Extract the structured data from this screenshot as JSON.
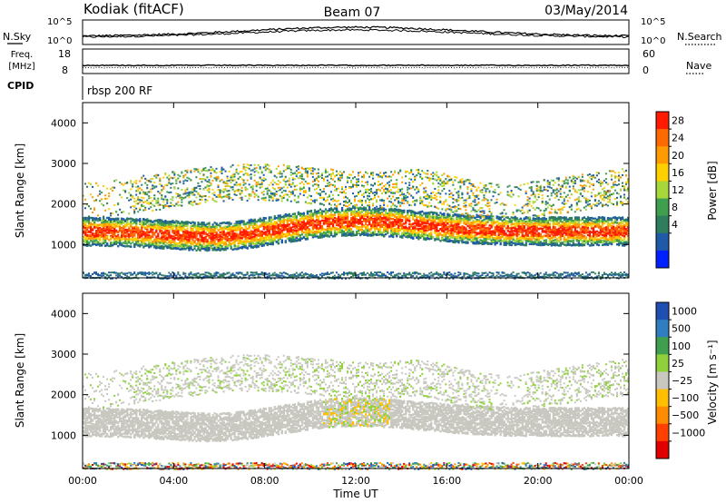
{
  "header": {
    "station": "Kodiak (fitACF)",
    "beam": "Beam 07",
    "date": "03/May/2014"
  },
  "sky_panel": {
    "left_label": "N.Sky",
    "right_label": "N.Search",
    "left_ticks": [
      "10^5",
      "10^0"
    ],
    "right_ticks": [
      "10^5",
      "10^0"
    ]
  },
  "freq_panel": {
    "label_line1": "Freq.",
    "label_line2": "[MHz]",
    "left_ticks": [
      "18",
      "8"
    ],
    "right_label": "Nave",
    "right_ticks": [
      "60",
      "0"
    ]
  },
  "cpid_panel": {
    "label": "CPID",
    "program": "rbsp 200 RF"
  },
  "chart_data": [
    {
      "type": "heatmap",
      "panel": "power",
      "ylabel": "Slant Range [km]",
      "xlabel": "Time UT",
      "xlim_hours": [
        0,
        24
      ],
      "ylim_km": [
        180,
        4500
      ],
      "x_ticks": [
        "00:00",
        "04:00",
        "08:00",
        "12:00",
        "16:00",
        "20:00",
        "00:00"
      ],
      "y_ticks": [
        "1000",
        "2000",
        "3000",
        "4000"
      ],
      "colorbar_label": "Power [dB]",
      "colorbar_ticks": [
        "28",
        "24",
        "20",
        "16",
        "12",
        "8",
        "4"
      ],
      "colorbar_colors": [
        "#ff1a00",
        "#ff6a00",
        "#ff9a00",
        "#ffd000",
        "#a6d83a",
        "#3f9f4f",
        "#2e7d5f",
        "#1f5aa8",
        "#0020ff"
      ]
    },
    {
      "type": "heatmap",
      "panel": "velocity",
      "ylabel": "Slant Range [km]",
      "xlabel": "Time UT",
      "xlim_hours": [
        0,
        24
      ],
      "ylim_km": [
        180,
        4500
      ],
      "x_ticks": [
        "00:00",
        "04:00",
        "08:00",
        "12:00",
        "16:00",
        "20:00",
        "00:00"
      ],
      "y_ticks": [
        "1000",
        "2000",
        "3000",
        "4000"
      ],
      "colorbar_label": "Velocity [m s⁻¹]",
      "colorbar_ticks": [
        "1000",
        "500",
        "100",
        "25",
        "−25",
        "−100",
        "−500",
        "−1000"
      ],
      "colorbar_colors": [
        "#1f4fb0",
        "#2f7ec0",
        "#3f9f4f",
        "#8fd13a",
        "#c8c8c0",
        "#ffbf00",
        "#ff8c00",
        "#ff4000",
        "#e00000"
      ]
    }
  ]
}
